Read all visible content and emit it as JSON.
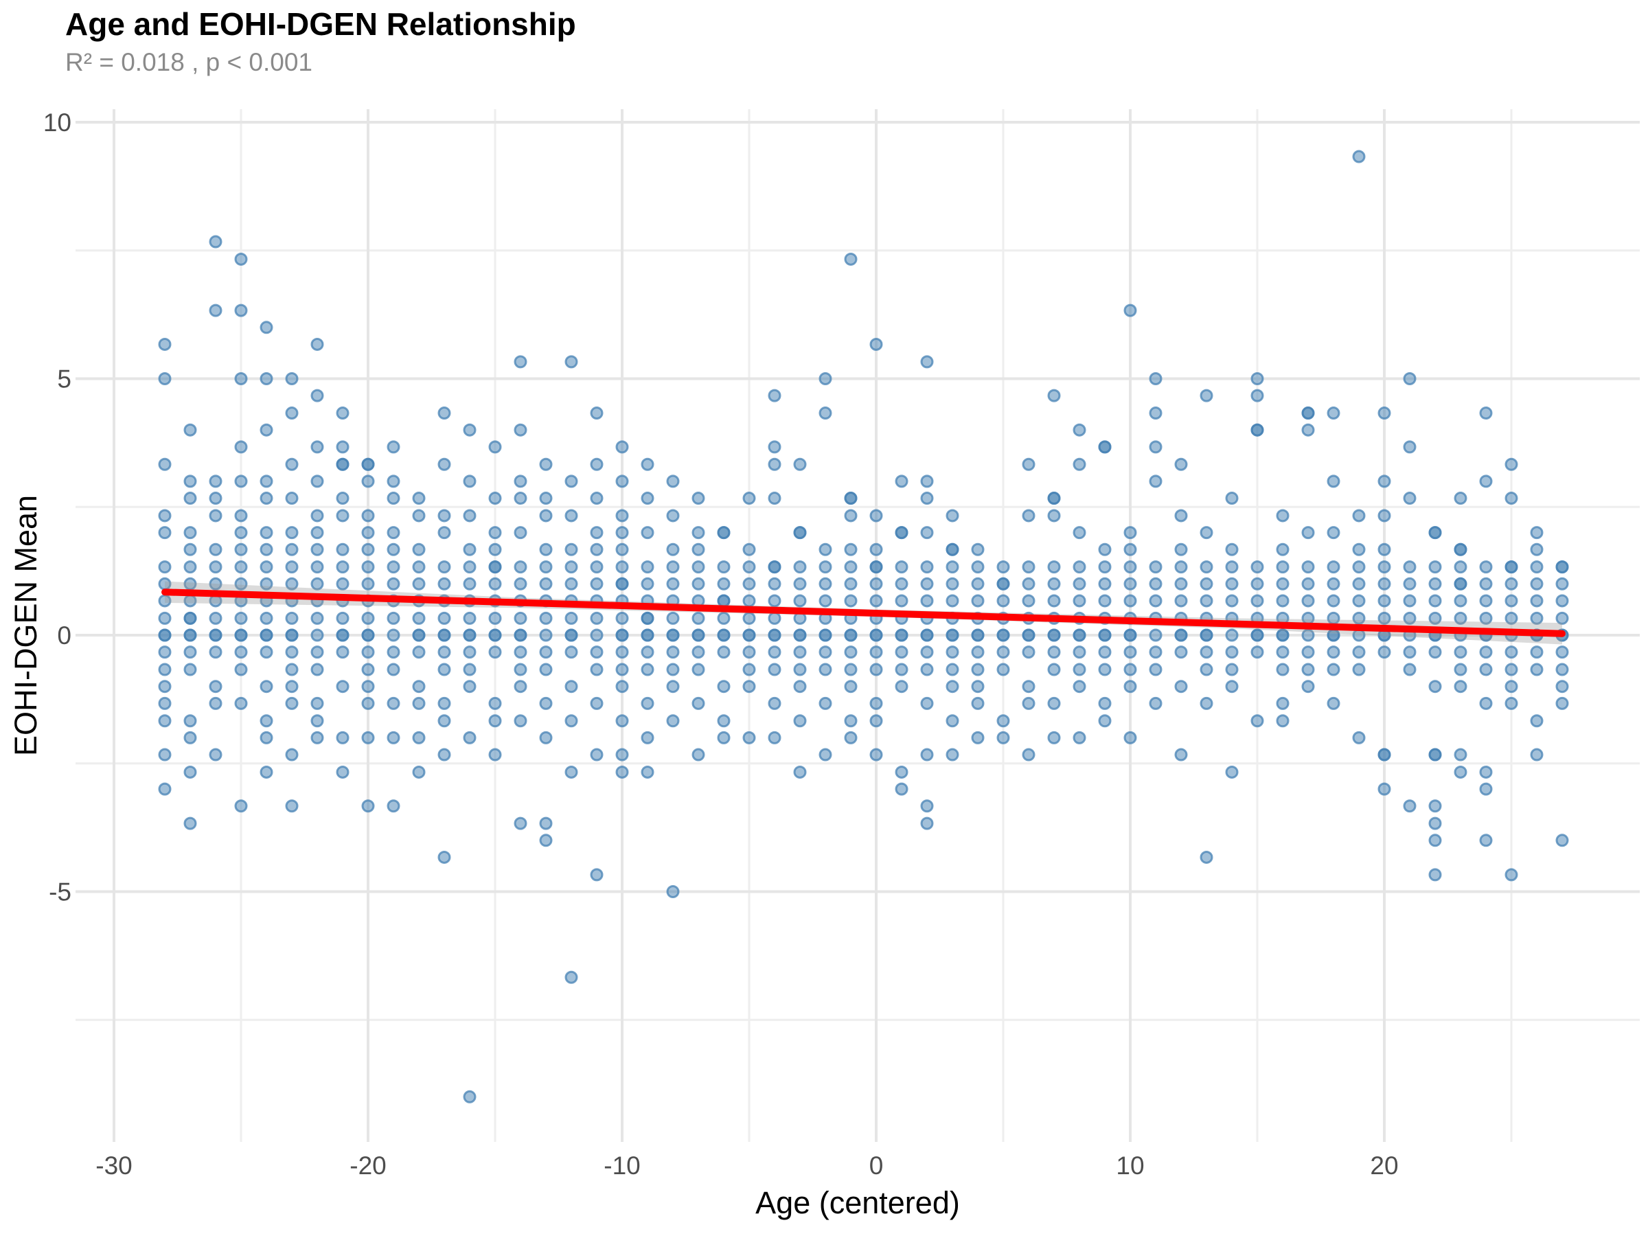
{
  "title": "Age and EOHI-DGEN Relationship",
  "subtitle": "R² = 0.018 , p < 0.001",
  "stats": {
    "r_squared": "0.018",
    "p_value": "< 0.001"
  },
  "chart_data": {
    "type": "scatter",
    "title": "Age and EOHI-DGEN Relationship",
    "subtitle": "R² = 0.018 , p < 0.001",
    "xlabel": "Age (centered)",
    "ylabel": "EOHI-DGEN Mean",
    "xlim": [
      -31.5,
      30
    ],
    "ylim": [
      -9.9,
      10.25
    ],
    "x_ticks_major": [
      -30,
      -20,
      -10,
      0,
      10,
      20
    ],
    "x_ticks_minor": [
      -25,
      -15,
      -5,
      5,
      15,
      25
    ],
    "y_ticks_major": [
      10,
      5,
      0,
      -5
    ],
    "y_ticks_minor": [
      7.5,
      2.5,
      -2.5,
      -7.5
    ],
    "grid": true,
    "legend_position": "none",
    "point_color": "#4682B4",
    "line_color": "#FF0000",
    "band_color": "#999999",
    "axis_text_color": "#4d4d4d",
    "grid_major_color": "#e5e5e5",
    "grid_minor_color": "#eeeeee",
    "regression": {
      "x_start": -28,
      "y_start": 0.84,
      "x_end": 27,
      "y_end": 0.03,
      "slope": -0.0147,
      "intercept": 0.43
    },
    "ci_band": {
      "x": [
        -28,
        -14,
        0,
        14,
        27
      ],
      "upper": [
        1.05,
        0.73,
        0.5,
        0.33,
        0.24
      ],
      "lower": [
        0.63,
        0.53,
        0.36,
        0.13,
        -0.18
      ]
    },
    "columns": [
      {
        "x": -28,
        "ys": [
          5.67,
          5,
          3.33,
          2.33,
          2,
          1.33,
          1,
          0.67,
          0.33,
          0,
          0,
          -0.33,
          -0.67,
          -1,
          -1.33,
          -1.67,
          -2.33,
          -3
        ]
      },
      {
        "x": -27,
        "ys": [
          4,
          3,
          2.67,
          2,
          1.67,
          1.33,
          1,
          0.67,
          0.33,
          0.33,
          0,
          0,
          -0.33,
          -0.67,
          -1.67,
          -2,
          -2.67,
          -3.67
        ]
      },
      {
        "x": -26,
        "ys": [
          7.67,
          6.33,
          3,
          2.67,
          2.33,
          1.67,
          1.33,
          1,
          0.67,
          0.33,
          0,
          0,
          -0.33,
          -1,
          -1.33,
          -2.33
        ]
      },
      {
        "x": -25,
        "ys": [
          7.33,
          6.33,
          5,
          3.67,
          3,
          2.33,
          2,
          1.67,
          1.33,
          1,
          0.67,
          0.33,
          0,
          0,
          -0.33,
          -0.67,
          -1.33,
          -3.33
        ]
      },
      {
        "x": -24,
        "ys": [
          6,
          5,
          4,
          3,
          2.67,
          2,
          1.67,
          1.33,
          1,
          0.67,
          0.33,
          0,
          0,
          -0.33,
          -1,
          -1.67,
          -2,
          -2.67
        ]
      },
      {
        "x": -23,
        "ys": [
          5,
          4.33,
          3.33,
          2.67,
          2,
          1.67,
          1.33,
          1,
          0.67,
          0.33,
          0,
          0,
          -0.33,
          -0.67,
          -1,
          -1.33,
          -2.33,
          -3.33
        ]
      },
      {
        "x": -22,
        "ys": [
          5.67,
          4.67,
          3.67,
          3,
          2.33,
          2,
          1.67,
          1.33,
          1,
          0.67,
          0.33,
          0,
          -0.33,
          -0.67,
          -1.33,
          -1.67,
          -2
        ]
      },
      {
        "x": -21,
        "ys": [
          4.33,
          3.67,
          3.33,
          3.33,
          2.67,
          2.33,
          1.67,
          1.33,
          1,
          0.67,
          0.33,
          0,
          0,
          -0.33,
          -1,
          -2,
          -2.67
        ]
      },
      {
        "x": -20,
        "ys": [
          3.33,
          3.33,
          3,
          2.33,
          2,
          1.67,
          1.33,
          1,
          0.67,
          0.33,
          0,
          0,
          -0.33,
          -0.67,
          -1,
          -1.33,
          -2,
          -3.33
        ]
      },
      {
        "x": -19,
        "ys": [
          3.67,
          3,
          2.67,
          2,
          1.67,
          1.33,
          1,
          0.67,
          0.33,
          0,
          -0.33,
          -0.67,
          -1.33,
          -2,
          -3.33
        ]
      },
      {
        "x": -18,
        "ys": [
          2.67,
          2.33,
          1.67,
          1.33,
          1,
          0.67,
          0.33,
          0,
          0,
          -0.33,
          -1,
          -1.33,
          -2,
          -2.67
        ]
      },
      {
        "x": -17,
        "ys": [
          4.33,
          3.33,
          2.33,
          2,
          1.33,
          1,
          0.67,
          0.33,
          0,
          0,
          -0.33,
          -0.67,
          -1.33,
          -1.67,
          -2.33,
          -4.33
        ]
      },
      {
        "x": -16,
        "ys": [
          4,
          3,
          2.33,
          1.67,
          1.33,
          1,
          0.67,
          0.33,
          0,
          0,
          -0.33,
          -0.67,
          -1,
          -2,
          -9
        ]
      },
      {
        "x": -15,
        "ys": [
          3.67,
          2.67,
          2,
          1.67,
          1.33,
          1.33,
          1,
          0.67,
          0.33,
          0,
          0,
          -0.33,
          -1.33,
          -1.67,
          -2.33
        ]
      },
      {
        "x": -14,
        "ys": [
          5.33,
          4,
          3,
          2.67,
          2,
          1.33,
          1,
          0.67,
          0.33,
          0,
          0,
          -0.33,
          -0.67,
          -1,
          -1.67,
          -3.67
        ]
      },
      {
        "x": -13,
        "ys": [
          3.33,
          2.67,
          2.33,
          1.67,
          1.33,
          1,
          0.67,
          0.33,
          0,
          -0.33,
          -0.67,
          -1.33,
          -2,
          -3.67,
          -4
        ]
      },
      {
        "x": -12,
        "ys": [
          5.33,
          3,
          2.33,
          1.67,
          1.33,
          1,
          0.67,
          0.33,
          0,
          0,
          -0.33,
          -1,
          -1.67,
          -2.67,
          -6.67
        ]
      },
      {
        "x": -11,
        "ys": [
          4.33,
          3.33,
          2.67,
          2,
          1.67,
          1.33,
          1,
          0.67,
          0.33,
          0,
          -0.33,
          -0.67,
          -1.33,
          -2.33,
          -4.67
        ]
      },
      {
        "x": -10,
        "ys": [
          3.67,
          3,
          2.33,
          2,
          1.67,
          1.33,
          1,
          1,
          0.67,
          0.33,
          0,
          0,
          -0.33,
          -0.67,
          -1,
          -1.67,
          -2.33,
          -2.67
        ]
      },
      {
        "x": -9,
        "ys": [
          3.33,
          2.67,
          2,
          1.33,
          1,
          0.67,
          0.33,
          0.33,
          0,
          0,
          -0.33,
          -0.67,
          -1.33,
          -2,
          -2.67
        ]
      },
      {
        "x": -8,
        "ys": [
          3,
          2.33,
          1.67,
          1.33,
          1,
          0.67,
          0.33,
          0,
          0,
          -0.33,
          -0.67,
          -1,
          -1.67,
          -5
        ]
      },
      {
        "x": -7,
        "ys": [
          2.67,
          2,
          1.67,
          1.33,
          1,
          0.67,
          0.33,
          0,
          0,
          -0.33,
          -0.67,
          -1.33,
          -2.33
        ]
      },
      {
        "x": -6,
        "ys": [
          2,
          2,
          1.33,
          1,
          0.67,
          0.67,
          0.33,
          0,
          0,
          -0.33,
          -1,
          -1.67,
          -2
        ]
      },
      {
        "x": -5,
        "ys": [
          2.67,
          1.67,
          1.33,
          1,
          0.67,
          0.33,
          0,
          0,
          -0.33,
          -0.67,
          -1,
          -2
        ]
      },
      {
        "x": -4,
        "ys": [
          4.67,
          3.67,
          3.33,
          2.67,
          1.33,
          1.33,
          1,
          0.67,
          0.33,
          0,
          0,
          -0.33,
          -0.67,
          -1.33,
          -2
        ]
      },
      {
        "x": -3,
        "ys": [
          3.33,
          2,
          2,
          1.33,
          1,
          0.67,
          0.33,
          0,
          0,
          -0.33,
          -0.67,
          -1,
          -1.67,
          -2.67
        ]
      },
      {
        "x": -2,
        "ys": [
          5,
          4.33,
          1.67,
          1.33,
          1,
          0.67,
          0.33,
          0,
          0,
          -0.33,
          -0.67,
          -1.33,
          -2.33
        ]
      },
      {
        "x": -1,
        "ys": [
          7.33,
          2.67,
          2.67,
          2.33,
          1.67,
          1.33,
          1,
          0.67,
          0.33,
          0,
          0,
          -0.33,
          -0.67,
          -1,
          -1.67,
          -2
        ]
      },
      {
        "x": 0,
        "ys": [
          5.67,
          2.33,
          1.67,
          1.33,
          1.33,
          1,
          0.67,
          0.33,
          0,
          0,
          -0.33,
          -0.67,
          -1.33,
          -1.67,
          -2.33
        ]
      },
      {
        "x": 1,
        "ys": [
          3,
          2,
          2,
          1.33,
          1,
          0.67,
          0.33,
          0,
          0,
          -0.33,
          -0.67,
          -1,
          -2.67,
          -3
        ]
      },
      {
        "x": 2,
        "ys": [
          5.33,
          3,
          2.67,
          2,
          1.33,
          1,
          0.67,
          0.33,
          0,
          0,
          -0.33,
          -0.67,
          -1.33,
          -2.33,
          -3.33,
          -3.67
        ]
      },
      {
        "x": 3,
        "ys": [
          2.33,
          1.67,
          1.67,
          1.33,
          1,
          0.67,
          0.33,
          0,
          0,
          -0.33,
          -0.67,
          -1,
          -1.67,
          -2.33
        ]
      },
      {
        "x": 4,
        "ys": [
          1.67,
          1.33,
          1,
          0.67,
          0.33,
          0,
          0,
          -0.33,
          -0.67,
          -1,
          -1.33,
          -2
        ]
      },
      {
        "x": 5,
        "ys": [
          1.33,
          1,
          1,
          0.67,
          0.33,
          0,
          0,
          -0.33,
          -0.67,
          -1.67,
          -2
        ]
      },
      {
        "x": 6,
        "ys": [
          3.33,
          2.33,
          1.33,
          1,
          0.67,
          0.33,
          0,
          0,
          -0.33,
          -1,
          -1.33,
          -2.33
        ]
      },
      {
        "x": 7,
        "ys": [
          4.67,
          2.67,
          2.67,
          2.33,
          1.33,
          1,
          0.67,
          0.33,
          0,
          0,
          -0.33,
          -0.67,
          -1.33,
          -2
        ]
      },
      {
        "x": 8,
        "ys": [
          4,
          3.33,
          2,
          1.33,
          1,
          0.67,
          0.33,
          0,
          0,
          -0.33,
          -0.67,
          -1,
          -2
        ]
      },
      {
        "x": 9,
        "ys": [
          3.67,
          3.67,
          1.67,
          1.33,
          1,
          0.67,
          0.33,
          0,
          0,
          -0.33,
          -0.67,
          -1.33,
          -1.67
        ]
      },
      {
        "x": 10,
        "ys": [
          6.33,
          2,
          1.67,
          1.33,
          1,
          0.67,
          0.33,
          0,
          0,
          -0.33,
          -0.67,
          -1,
          -2
        ]
      },
      {
        "x": 11,
        "ys": [
          5,
          4.33,
          3.67,
          3,
          1.33,
          1,
          0.67,
          0.33,
          0,
          -0.33,
          -0.67,
          -1.33
        ]
      },
      {
        "x": 12,
        "ys": [
          3.33,
          2.33,
          1.67,
          1.33,
          1,
          0.67,
          0.33,
          0,
          0,
          -0.33,
          -1,
          -2.33
        ]
      },
      {
        "x": 13,
        "ys": [
          4.67,
          2,
          1.33,
          1,
          0.67,
          0.33,
          0,
          0,
          -0.33,
          -0.67,
          -1.33,
          -4.33
        ]
      },
      {
        "x": 14,
        "ys": [
          2.67,
          1.67,
          1.33,
          1,
          0.67,
          0.33,
          0,
          -0.33,
          -0.67,
          -1,
          -2.67
        ]
      },
      {
        "x": 15,
        "ys": [
          5,
          4.67,
          4,
          4,
          1.33,
          1,
          0.67,
          0.33,
          0,
          0,
          -0.33,
          -1.67
        ]
      },
      {
        "x": 16,
        "ys": [
          2.33,
          1.67,
          1.33,
          1,
          0.67,
          0.33,
          0,
          0,
          -0.33,
          -0.67,
          -1.33,
          -1.67
        ]
      },
      {
        "x": 17,
        "ys": [
          4.33,
          4.33,
          4,
          2,
          1.33,
          1,
          0.67,
          0.33,
          0,
          -0.33,
          -0.67,
          -1
        ]
      },
      {
        "x": 18,
        "ys": [
          4.33,
          3,
          2,
          1.33,
          1,
          0.67,
          0.33,
          0,
          0,
          -0.33,
          -0.67,
          -1.33
        ]
      },
      {
        "x": 19,
        "ys": [
          9.33,
          2.33,
          1.67,
          1.33,
          1,
          0.67,
          0.33,
          0,
          -0.33,
          -0.67,
          -2
        ]
      },
      {
        "x": 20,
        "ys": [
          4.33,
          3,
          2.33,
          1.67,
          1.33,
          1,
          0.67,
          0.33,
          0,
          0,
          -0.33,
          -2.33,
          -2.33,
          -3
        ]
      },
      {
        "x": 21,
        "ys": [
          5,
          3.67,
          2.67,
          1.33,
          1,
          0.67,
          0.33,
          0,
          -0.33,
          -0.67,
          -3.33
        ]
      },
      {
        "x": 22,
        "ys": [
          2,
          2,
          1.33,
          1,
          0.67,
          0.33,
          0,
          0,
          -0.33,
          -1,
          -2.33,
          -2.33,
          -3.33,
          -3.67,
          -4,
          -4.67
        ]
      },
      {
        "x": 23,
        "ys": [
          2.67,
          1.67,
          1.67,
          1.33,
          1,
          1,
          0.67,
          0.33,
          0,
          -0.33,
          -0.67,
          -1,
          -2.33,
          -2.67
        ]
      },
      {
        "x": 24,
        "ys": [
          4.33,
          3,
          1.33,
          1,
          0.67,
          0.33,
          0,
          0,
          -0.33,
          -0.67,
          -1.33,
          -2.67,
          -3,
          -4
        ]
      },
      {
        "x": 25,
        "ys": [
          3.33,
          2.67,
          1.33,
          1.33,
          1,
          0.67,
          0.33,
          0,
          -0.33,
          -0.67,
          -1,
          -1.33,
          -4.67
        ]
      },
      {
        "x": 26,
        "ys": [
          2,
          1.67,
          1.33,
          1,
          0.67,
          0.33,
          0,
          0,
          -0.33,
          -0.67,
          -1.67,
          -2.33
        ]
      },
      {
        "x": 27,
        "ys": [
          1.33,
          1.33,
          1,
          0.67,
          0.33,
          0,
          0,
          -0.33,
          -0.67,
          -1,
          -1.33,
          -4
        ]
      }
    ]
  }
}
